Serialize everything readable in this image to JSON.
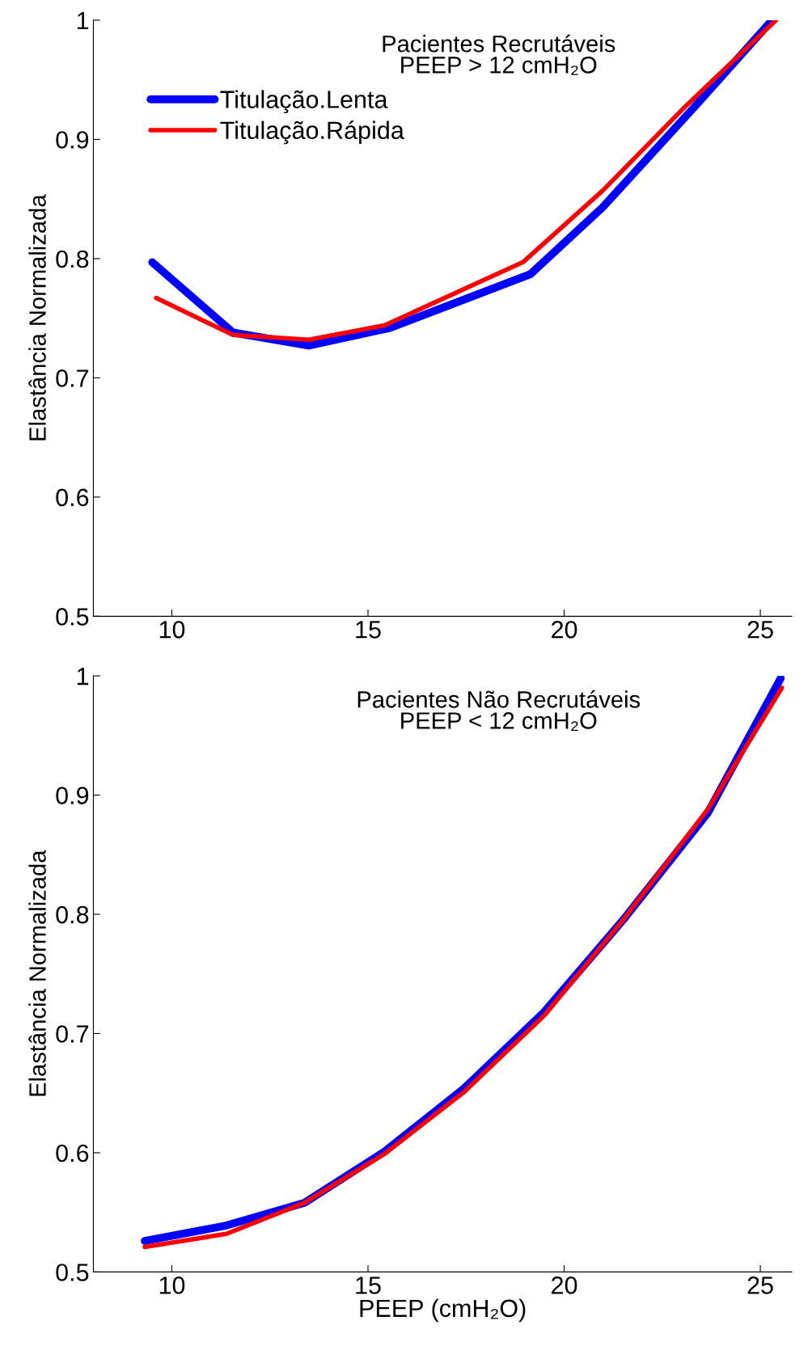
{
  "chart_data": [
    {
      "type": "line",
      "title": "Pacientes Recrutáveis\nPEEP > 12 cmH₂O",
      "ylabel": "Elastância Normalizada",
      "xlim": [
        8,
        25.8
      ],
      "xticks": [
        10,
        15,
        20,
        25
      ],
      "ylim": [
        0.5,
        1
      ],
      "yticks": [
        0.5,
        0.6,
        0.7,
        0.8,
        0.9,
        1
      ],
      "grid": false,
      "legend": "top left",
      "line_style": "solid",
      "marker": "none",
      "series": [
        {
          "name": "Titulação.Lenta",
          "color": "#0000ff",
          "x": [
            9.5,
            11.56,
            13.49,
            15.57,
            19.14,
            20.98,
            23.34,
            25.3
          ],
          "values": [
            0.797,
            0.738,
            0.727,
            0.742,
            0.787,
            0.843,
            0.928,
            1.0
          ]
        },
        {
          "name": "Titulação.Rápida",
          "color": "#ff0000",
          "x": [
            9.6,
            11.56,
            13.49,
            15.42,
            18.95,
            20.98,
            23.1,
            25.4
          ],
          "values": [
            0.767,
            0.736,
            0.732,
            0.744,
            0.797,
            0.857,
            0.928,
            1.0
          ]
        }
      ]
    },
    {
      "type": "line",
      "title": "Pacientes Não Recrutáveis\nPEEP < 12 cmH₂O",
      "xlabel": "PEEP (cmH₂O)",
      "ylabel": "Elastância Normalizada",
      "xlim": [
        8,
        25.8
      ],
      "xticks": [
        10,
        15,
        20,
        25
      ],
      "ylim": [
        0.5,
        1
      ],
      "yticks": [
        0.5,
        0.6,
        0.7,
        0.8,
        0.9,
        1
      ],
      "grid": false,
      "line_style": "solid",
      "marker": "none",
      "series": [
        {
          "color": "#0000ff",
          "x": [
            9.31,
            11.39,
            13.38,
            15.42,
            17.45,
            19.49,
            21.52,
            23.66,
            25.52
          ],
          "values": [
            0.526,
            0.539,
            0.558,
            0.601,
            0.654,
            0.718,
            0.796,
            0.885,
            0.998
          ]
        },
        {
          "color": "#ff0000",
          "x": [
            9.31,
            11.39,
            13.38,
            15.42,
            17.45,
            19.49,
            21.52,
            23.66,
            25.55
          ],
          "values": [
            0.521,
            0.532,
            0.558,
            0.599,
            0.651,
            0.715,
            0.796,
            0.888,
            0.99
          ]
        }
      ]
    }
  ]
}
